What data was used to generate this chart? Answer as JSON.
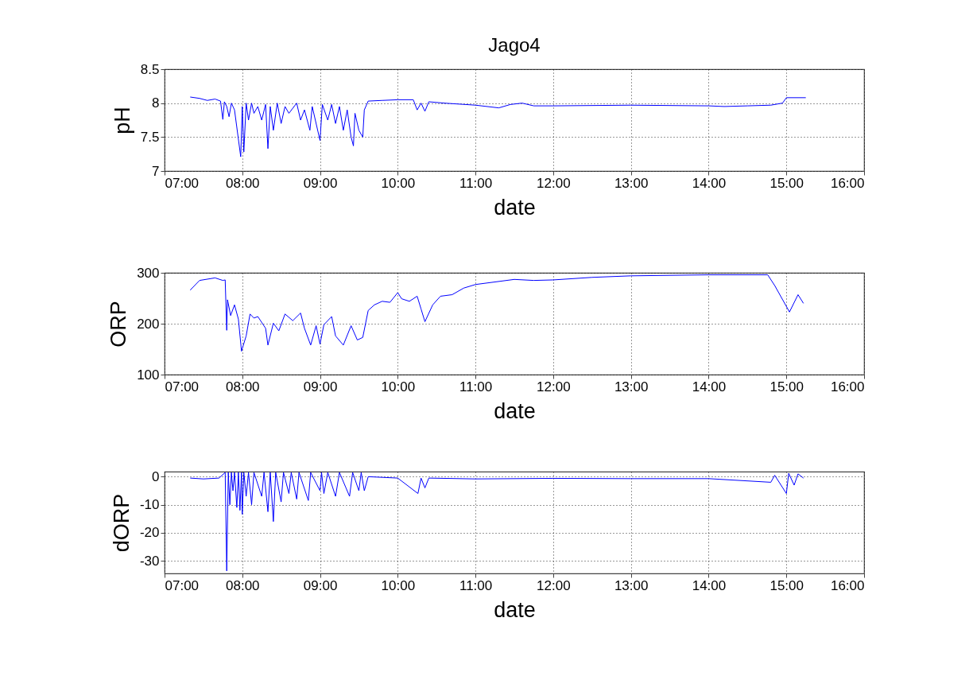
{
  "chart_data": [
    {
      "type": "line",
      "title": "Jago4",
      "xlabel": "date",
      "ylabel": "pH",
      "grid": true,
      "xlim": [
        7,
        16
      ],
      "ylim": [
        7,
        8.5
      ],
      "yticks": [
        7,
        7.5,
        8,
        8.5
      ],
      "xticks": [
        {
          "value": 7,
          "label": "07:00"
        },
        {
          "value": 8,
          "label": "08:00"
        },
        {
          "value": 9,
          "label": "09:00"
        },
        {
          "value": 10,
          "label": "10:00"
        },
        {
          "value": 11,
          "label": "11:00"
        },
        {
          "value": 12,
          "label": "12:00"
        },
        {
          "value": 13,
          "label": "13:00"
        },
        {
          "value": 14,
          "label": "14:00"
        },
        {
          "value": 15,
          "label": "15:00"
        },
        {
          "value": 16,
          "label": "16:00"
        }
      ],
      "series": [
        {
          "color": "#0000ff",
          "x": [
            7.33,
            7.45,
            7.55,
            7.65,
            7.72,
            7.75,
            7.77,
            7.8,
            7.83,
            7.86,
            7.9,
            7.98,
            8.0,
            8.02,
            8.05,
            8.08,
            8.12,
            8.15,
            8.2,
            8.25,
            8.3,
            8.33,
            8.36,
            8.4,
            8.45,
            8.5,
            8.55,
            8.6,
            8.7,
            8.75,
            8.8,
            8.87,
            8.9,
            9.0,
            9.03,
            9.1,
            9.15,
            9.2,
            9.25,
            9.3,
            9.35,
            9.4,
            9.43,
            9.45,
            9.5,
            9.55,
            9.57,
            9.62,
            9.8,
            10.0,
            10.2,
            10.25,
            10.3,
            10.35,
            10.4,
            10.6,
            11.0,
            11.3,
            11.45,
            11.6,
            11.75,
            12.0,
            13.0,
            14.0,
            14.2,
            14.5,
            14.8,
            14.95,
            15.0,
            15.25
          ],
          "values": [
            8.09,
            8.07,
            8.04,
            8.06,
            8.03,
            7.76,
            8.02,
            7.95,
            7.8,
            8.0,
            7.9,
            7.21,
            7.95,
            7.28,
            8.0,
            7.75,
            8.0,
            7.85,
            7.95,
            7.75,
            7.98,
            7.33,
            7.95,
            7.6,
            8.0,
            7.7,
            7.95,
            7.85,
            8.0,
            7.75,
            7.9,
            7.6,
            7.95,
            7.45,
            7.98,
            7.75,
            7.98,
            7.7,
            7.95,
            7.6,
            7.9,
            7.5,
            7.37,
            7.85,
            7.6,
            7.5,
            7.9,
            8.03,
            8.04,
            8.05,
            8.05,
            7.9,
            8.0,
            7.88,
            8.02,
            8.0,
            7.97,
            7.93,
            7.98,
            8.0,
            7.96,
            7.96,
            7.97,
            7.96,
            7.95,
            7.96,
            7.97,
            8.0,
            8.08,
            8.08
          ]
        }
      ]
    },
    {
      "type": "line",
      "xlabel": "date",
      "ylabel": "ORP",
      "grid": true,
      "xlim": [
        7,
        16
      ],
      "ylim": [
        100,
        300
      ],
      "yticks": [
        100,
        200,
        300
      ],
      "xticks": [
        {
          "value": 7,
          "label": "07:00"
        },
        {
          "value": 8,
          "label": "08:00"
        },
        {
          "value": 9,
          "label": "09:00"
        },
        {
          "value": 10,
          "label": "10:00"
        },
        {
          "value": 11,
          "label": "11:00"
        },
        {
          "value": 12,
          "label": "12:00"
        },
        {
          "value": 13,
          "label": "13:00"
        },
        {
          "value": 14,
          "label": "14:00"
        },
        {
          "value": 15,
          "label": "15:00"
        },
        {
          "value": 16,
          "label": "16:00"
        }
      ],
      "series": [
        {
          "color": "#0000ff",
          "x": [
            7.33,
            7.45,
            7.65,
            7.75,
            7.78,
            7.8,
            7.81,
            7.85,
            7.9,
            7.95,
            7.99,
            8.05,
            8.1,
            8.15,
            8.2,
            8.3,
            8.33,
            8.4,
            8.47,
            8.55,
            8.65,
            8.75,
            8.8,
            8.88,
            8.95,
            9.0,
            9.05,
            9.15,
            9.2,
            9.3,
            9.4,
            9.48,
            9.55,
            9.62,
            9.7,
            9.8,
            9.9,
            10.0,
            10.05,
            10.15,
            10.25,
            10.3,
            10.35,
            10.45,
            10.55,
            10.7,
            10.85,
            11.0,
            11.5,
            11.75,
            12.0,
            12.5,
            13.0,
            14.0,
            14.76,
            14.85,
            15.04,
            15.15,
            15.22
          ],
          "values": [
            266,
            285,
            290,
            285,
            286,
            187,
            247,
            216,
            237,
            209,
            146,
            176,
            219,
            211,
            214,
            191,
            158,
            201,
            186,
            219,
            206,
            221,
            191,
            158,
            196,
            160,
            198,
            214,
            176,
            158,
            196,
            168,
            173,
            226,
            237,
            244,
            242,
            261,
            249,
            244,
            254,
            229,
            204,
            237,
            254,
            257,
            270,
            277,
            287,
            285,
            286,
            291,
            294,
            296,
            296,
            275,
            223,
            257,
            240
          ]
        }
      ]
    },
    {
      "type": "line",
      "xlabel": "date",
      "ylabel": "dORP",
      "grid": true,
      "xlim": [
        7,
        16
      ],
      "ylim": [
        -34.5,
        1.8
      ],
      "yticks": [
        -30,
        -20,
        -10,
        0
      ],
      "xticks": [
        {
          "value": 7,
          "label": "07:00"
        },
        {
          "value": 8,
          "label": "08:00"
        },
        {
          "value": 9,
          "label": "09:00"
        },
        {
          "value": 10,
          "label": "10:00"
        },
        {
          "value": 11,
          "label": "11:00"
        },
        {
          "value": 12,
          "label": "12:00"
        },
        {
          "value": 13,
          "label": "13:00"
        },
        {
          "value": 14,
          "label": "14:00"
        },
        {
          "value": 15,
          "label": "15:00"
        },
        {
          "value": 16,
          "label": "16:00"
        }
      ],
      "series": [
        {
          "color": "#0000ff",
          "x": [
            7.33,
            7.5,
            7.7,
            7.78,
            7.8,
            7.82,
            7.84,
            7.86,
            7.88,
            7.9,
            7.93,
            7.95,
            7.97,
            7.99,
            8.0,
            8.02,
            8.05,
            8.08,
            8.12,
            8.15,
            8.25,
            8.28,
            8.33,
            8.36,
            8.4,
            8.43,
            8.5,
            8.53,
            8.6,
            8.63,
            8.7,
            8.73,
            8.85,
            8.88,
            9.0,
            9.02,
            9.05,
            9.1,
            9.2,
            9.25,
            9.38,
            9.42,
            9.5,
            9.53,
            9.57,
            9.62,
            10.0,
            10.26,
            10.3,
            10.35,
            10.4,
            11.0,
            12.0,
            13.0,
            14.0,
            14.8,
            14.85,
            15.0,
            15.03,
            15.1,
            15.15,
            15.22
          ],
          "values": [
            -0.5,
            -0.8,
            -0.5,
            1.5,
            -33.6,
            1.5,
            -10,
            1.5,
            -5,
            1.5,
            -11,
            1.5,
            -12,
            1.5,
            -13.4,
            1.5,
            -7,
            1.5,
            -10,
            1.5,
            -7,
            1.5,
            -12.5,
            1.5,
            -16,
            1.5,
            -9,
            1.5,
            -6,
            1.5,
            -8,
            1.5,
            -8.5,
            1.5,
            -5,
            1.5,
            -6,
            1.5,
            -7,
            1.5,
            -7,
            1.5,
            -5,
            1.5,
            -5,
            0,
            -0.5,
            -6,
            -0.5,
            -4,
            -0.5,
            -0.8,
            -0.6,
            -0.7,
            -0.7,
            -2,
            0.5,
            -6,
            1.2,
            -3,
            1,
            -0.5
          ]
        }
      ]
    }
  ]
}
